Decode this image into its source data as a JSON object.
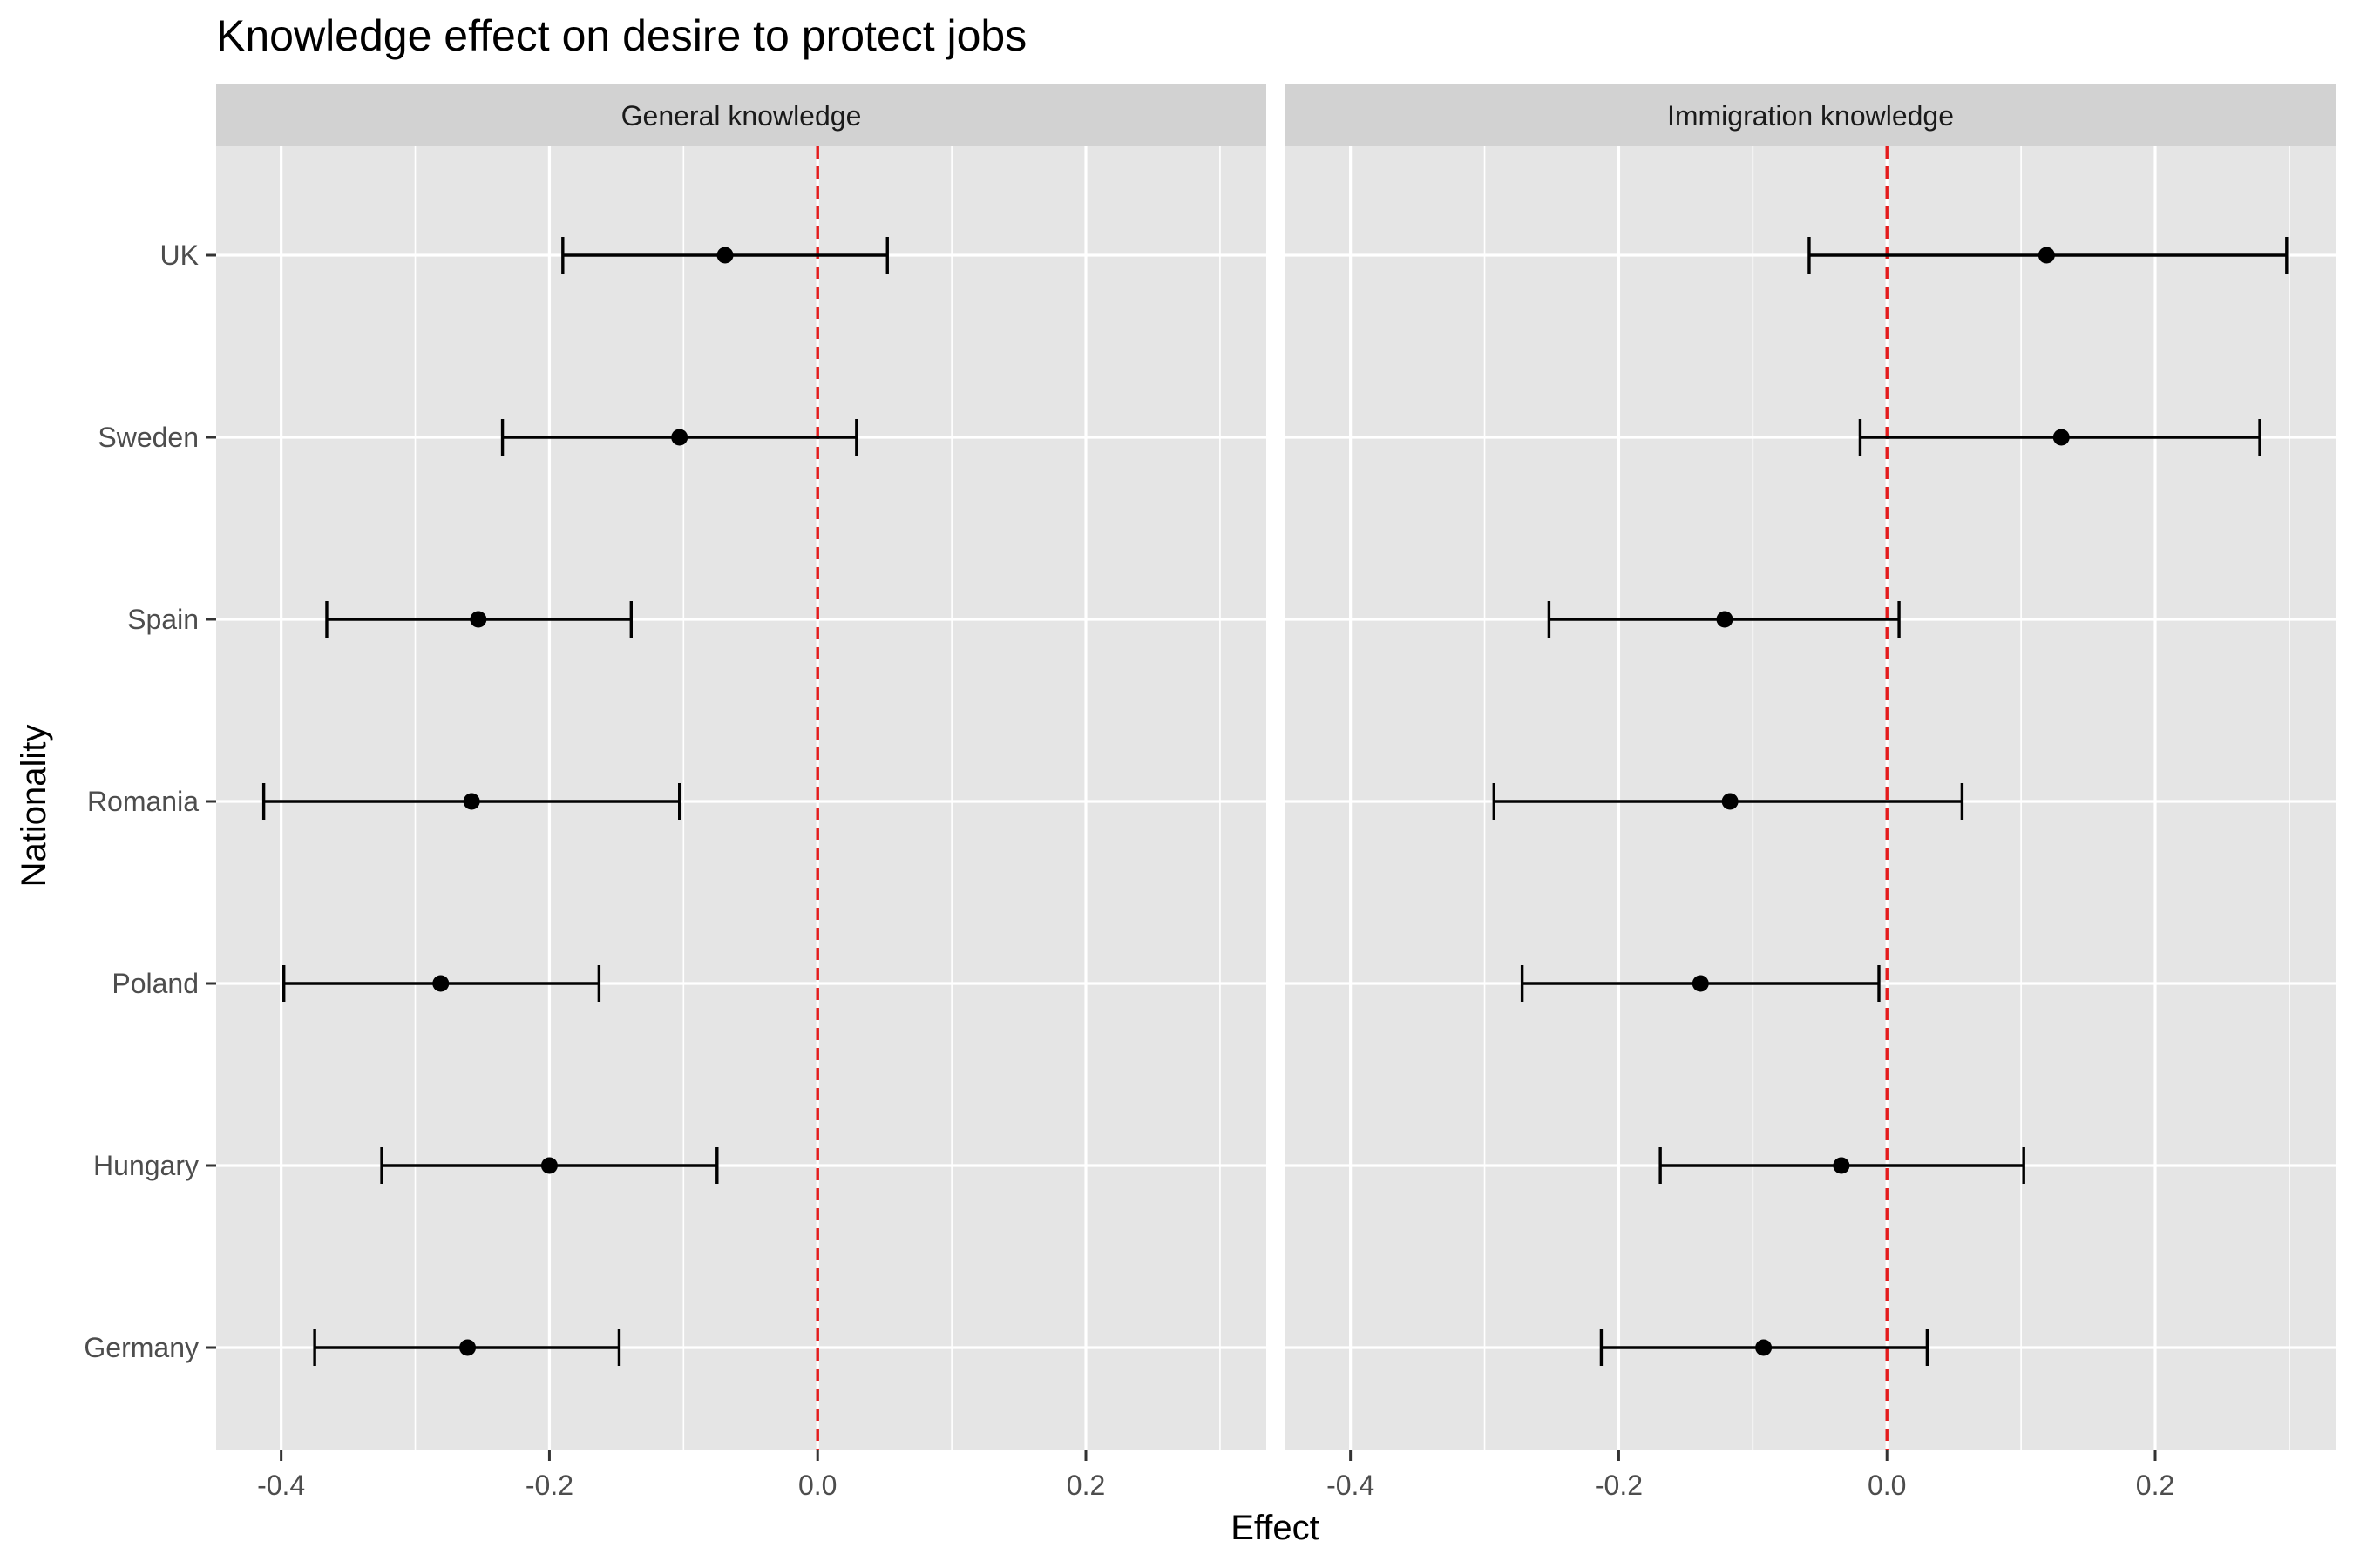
{
  "chart_data": {
    "type": "errorbar",
    "title": "Knowledge effect on desire to protect jobs",
    "xlabel": "Effect",
    "ylabel": "Nationality",
    "xlim": [
      -0.4485,
      0.3345
    ],
    "x_ticks": [
      -0.4,
      -0.2,
      0.0,
      0.2
    ],
    "x_tick_labels": [
      "-0.4",
      "-0.2",
      "0.0",
      "0.2"
    ],
    "categories": [
      "UK",
      "Sweden",
      "Spain",
      "Romania",
      "Poland",
      "Hungary",
      "Germany"
    ],
    "reference_line": {
      "x": 0.0,
      "color": "#e41a1c",
      "style": "dashed"
    },
    "grid": true,
    "colors": {
      "panel_bg": "#e5e5e5",
      "strip_bg": "#d2d2d2",
      "grid": "#ffffff",
      "marks": "#000000",
      "reference": "#e41a1c"
    },
    "panels": [
      {
        "name": "General knowledge",
        "estimates": [
          -0.069,
          -0.103,
          -0.253,
          -0.258,
          -0.281,
          -0.2,
          -0.261
        ],
        "lower": [
          -0.19,
          -0.235,
          -0.366,
          -0.413,
          -0.398,
          -0.325,
          -0.375
        ],
        "upper": [
          0.052,
          0.029,
          -0.139,
          -0.103,
          -0.163,
          -0.075,
          -0.148
        ]
      },
      {
        "name": "Immigration knowledge",
        "estimates": [
          0.119,
          0.13,
          -0.121,
          -0.117,
          -0.139,
          -0.034,
          -0.092
        ],
        "lower": [
          -0.058,
          -0.02,
          -0.252,
          -0.293,
          -0.272,
          -0.169,
          -0.213
        ],
        "upper": [
          0.298,
          0.278,
          0.009,
          0.056,
          -0.006,
          0.102,
          0.03
        ]
      }
    ]
  }
}
